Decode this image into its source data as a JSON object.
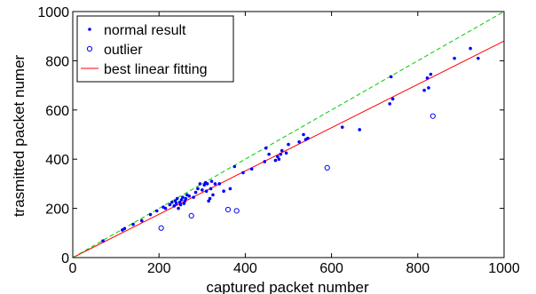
{
  "chart_data": {
    "type": "scatter",
    "xlabel": "captured packet number",
    "ylabel": "trasmitted packet numer",
    "xlim": [
      0,
      1000
    ],
    "ylim": [
      0,
      1000
    ],
    "xticks": [
      0,
      200,
      400,
      600,
      800,
      1000
    ],
    "yticks": [
      0,
      200,
      400,
      600,
      800,
      1000
    ],
    "grid": false,
    "legend_position": "top-left",
    "series": [
      {
        "name": "normal result",
        "kind": "points-filled",
        "color": "#0000ff",
        "points": [
          [
            70,
            68
          ],
          [
            115,
            112
          ],
          [
            120,
            118
          ],
          [
            140,
            135
          ],
          [
            160,
            150
          ],
          [
            180,
            175
          ],
          [
            195,
            190
          ],
          [
            210,
            205
          ],
          [
            215,
            200
          ],
          [
            225,
            215
          ],
          [
            230,
            225
          ],
          [
            235,
            210
          ],
          [
            238,
            230
          ],
          [
            240,
            220
          ],
          [
            242,
            240
          ],
          [
            245,
            200
          ],
          [
            248,
            225
          ],
          [
            250,
            215
          ],
          [
            252,
            235
          ],
          [
            255,
            245
          ],
          [
            258,
            220
          ],
          [
            260,
            230
          ],
          [
            262,
            240
          ],
          [
            265,
            255
          ],
          [
            270,
            250
          ],
          [
            280,
            245
          ],
          [
            285,
            265
          ],
          [
            290,
            280
          ],
          [
            295,
            300
          ],
          [
            300,
            275
          ],
          [
            305,
            295
          ],
          [
            308,
            305
          ],
          [
            310,
            270
          ],
          [
            312,
            300
          ],
          [
            315,
            230
          ],
          [
            318,
            240
          ],
          [
            320,
            280
          ],
          [
            322,
            310
          ],
          [
            325,
            255
          ],
          [
            330,
            300
          ],
          [
            340,
            300
          ],
          [
            350,
            270
          ],
          [
            365,
            280
          ],
          [
            375,
            370
          ],
          [
            395,
            345
          ],
          [
            415,
            360
          ],
          [
            445,
            390
          ],
          [
            448,
            445
          ],
          [
            455,
            420
          ],
          [
            470,
            395
          ],
          [
            475,
            410
          ],
          [
            478,
            400
          ],
          [
            482,
            420
          ],
          [
            485,
            435
          ],
          [
            495,
            425
          ],
          [
            500,
            460
          ],
          [
            525,
            470
          ],
          [
            535,
            500
          ],
          [
            540,
            480
          ],
          [
            545,
            485
          ],
          [
            625,
            530
          ],
          [
            665,
            520
          ],
          [
            735,
            625
          ],
          [
            738,
            735
          ],
          [
            742,
            645
          ],
          [
            815,
            680
          ],
          [
            822,
            730
          ],
          [
            825,
            690
          ],
          [
            830,
            745
          ],
          [
            885,
            810
          ],
          [
            922,
            850
          ],
          [
            940,
            810
          ]
        ]
      },
      {
        "name": "outlier",
        "kind": "points-open",
        "color": "#0000ff",
        "points": [
          [
            205,
            120
          ],
          [
            275,
            170
          ],
          [
            360,
            195
          ],
          [
            380,
            190
          ],
          [
            590,
            365
          ],
          [
            835,
            575
          ]
        ]
      },
      {
        "name": "best linear fitting",
        "kind": "line",
        "color": "#ff0000",
        "dash": "solid",
        "points": [
          [
            0,
            0
          ],
          [
            1000,
            880
          ]
        ]
      },
      {
        "kind": "line",
        "color": "#00cc00",
        "dash": "dashed",
        "points": [
          [
            0,
            0
          ],
          [
            1000,
            1000
          ]
        ]
      }
    ]
  }
}
